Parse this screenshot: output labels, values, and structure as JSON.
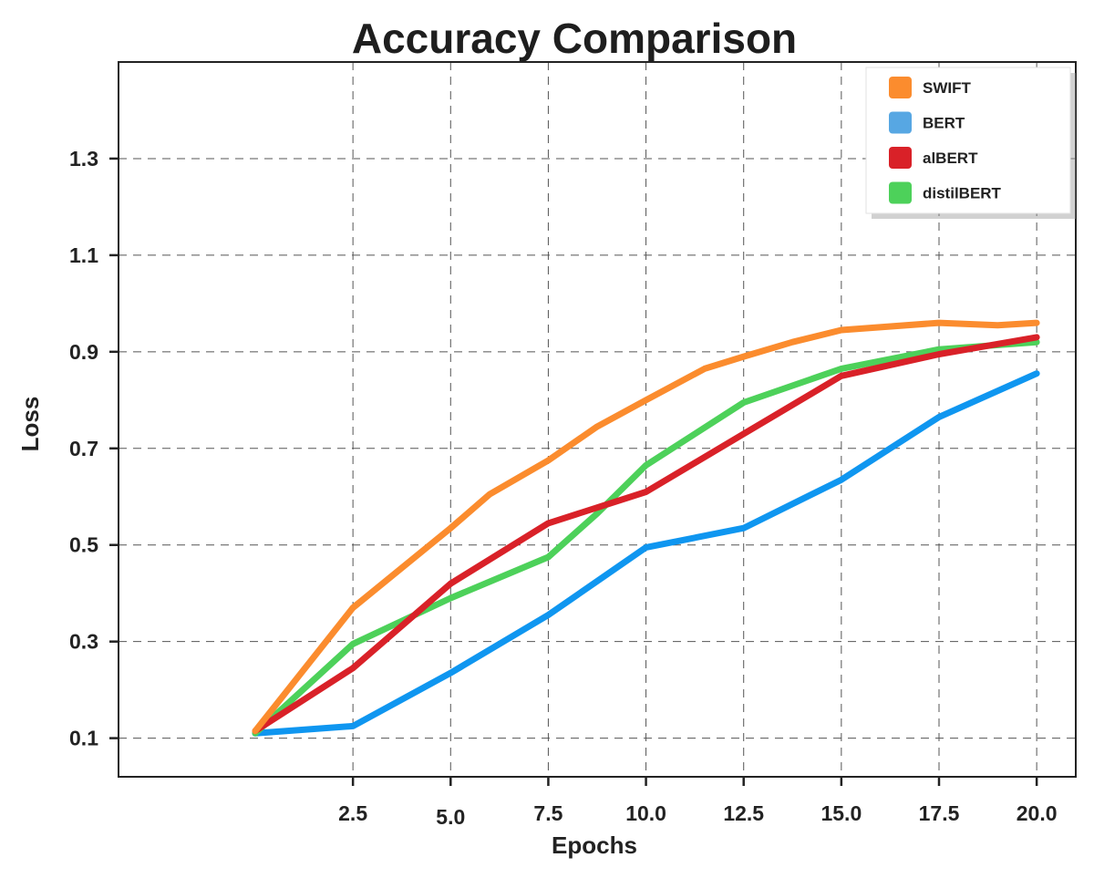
{
  "chart_data": {
    "type": "line",
    "title": "Accuracy Comparison",
    "xlabel": "Epochs",
    "ylabel": "Loss",
    "xlim": [
      -3.5,
      21
    ],
    "ylim": [
      0.02,
      1.5
    ],
    "xticks": [
      2.5,
      5.0,
      7.5,
      10.0,
      12.5,
      15.0,
      17.5,
      20.0
    ],
    "xtick_labels": [
      "2.5",
      "5.0",
      "7.5",
      "10.0",
      "12.5",
      "15.0",
      "17.5",
      "20.0"
    ],
    "yticks": [
      0.1,
      0.3,
      0.5,
      0.7,
      0.9,
      1.1,
      1.3
    ],
    "ytick_labels": [
      "0.1",
      "0.3",
      "0.5",
      "0.7",
      "0.9",
      "1.1",
      "1.3"
    ],
    "grid": true,
    "legend_position": "top-right",
    "series": [
      {
        "name": "SWIFT",
        "color": "#fb8c2e",
        "points": [
          [
            0,
            0.115
          ],
          [
            2.5,
            0.37
          ],
          [
            5,
            0.535
          ],
          [
            6,
            0.605
          ],
          [
            7.5,
            0.675
          ],
          [
            8.75,
            0.745
          ],
          [
            10,
            0.8
          ],
          [
            11.5,
            0.865
          ],
          [
            12.5,
            0.89
          ],
          [
            13.75,
            0.92
          ],
          [
            15,
            0.945
          ],
          [
            17.5,
            0.96
          ],
          [
            19,
            0.955
          ],
          [
            20,
            0.96
          ]
        ]
      },
      {
        "name": "BERT",
        "color": "#0f96f0",
        "legend_color": "#57a7e3",
        "points": [
          [
            0,
            0.11
          ],
          [
            2.5,
            0.125
          ],
          [
            5,
            0.235
          ],
          [
            7.5,
            0.355
          ],
          [
            10,
            0.495
          ],
          [
            12.5,
            0.535
          ],
          [
            15,
            0.635
          ],
          [
            17.5,
            0.765
          ],
          [
            20,
            0.855
          ]
        ]
      },
      {
        "name": "alBERT",
        "color": "#d92128",
        "points": [
          [
            0,
            0.115
          ],
          [
            2.5,
            0.245
          ],
          [
            5,
            0.42
          ],
          [
            7.5,
            0.545
          ],
          [
            10,
            0.61
          ],
          [
            12.5,
            0.73
          ],
          [
            15,
            0.85
          ],
          [
            17.5,
            0.895
          ],
          [
            20,
            0.93
          ]
        ]
      },
      {
        "name": "distilBERT",
        "color": "#4dd15a",
        "points": [
          [
            0,
            0.11
          ],
          [
            2.5,
            0.295
          ],
          [
            5,
            0.39
          ],
          [
            7.5,
            0.475
          ],
          [
            8.75,
            0.565
          ],
          [
            10,
            0.665
          ],
          [
            12.5,
            0.795
          ],
          [
            15,
            0.865
          ],
          [
            17.5,
            0.905
          ],
          [
            20,
            0.92
          ]
        ]
      }
    ]
  }
}
